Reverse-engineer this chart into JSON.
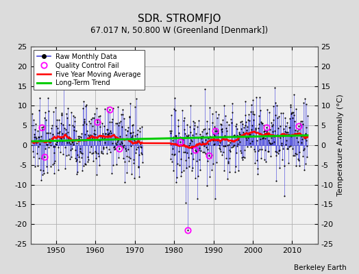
{
  "title": "SDR. STROMFJO",
  "subtitle": "67.017 N, 50.800 W (Greenland [Denmark])",
  "ylabel": "Temperature Anomaly (°C)",
  "credit": "Berkeley Earth",
  "xlim": [
    1943.5,
    2016.5
  ],
  "ylim": [
    -25,
    25
  ],
  "xticks": [
    1950,
    1960,
    1970,
    1980,
    1990,
    2000,
    2010
  ],
  "yticks": [
    -25,
    -20,
    -15,
    -10,
    -5,
    0,
    5,
    10,
    15,
    20,
    25
  ],
  "bg_color": "#dcdcdc",
  "plot_bg_color": "#f0f0f0",
  "raw_line_color": "#4444dd",
  "raw_marker_color": "#000000",
  "qc_fail_color": "#ff00ff",
  "moving_avg_color": "#ff0000",
  "trend_color": "#00cc00",
  "seed": 7,
  "start_year": 1944,
  "gap_start": 1972,
  "gap_end": 1979,
  "end_year": 2013,
  "noise_std": 4.2,
  "moving_avg_window": 60
}
